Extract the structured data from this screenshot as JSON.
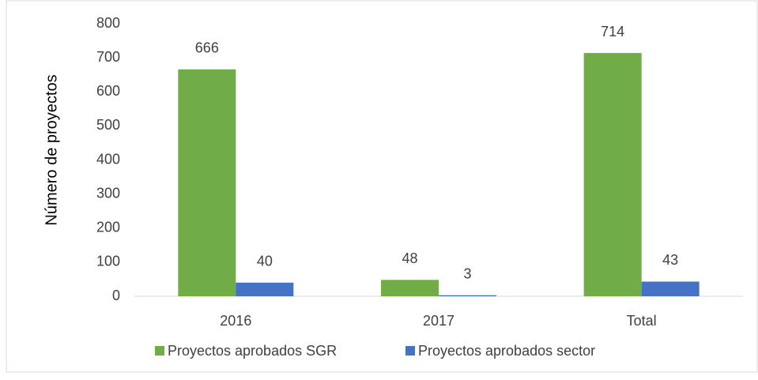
{
  "chart_data": {
    "type": "bar",
    "y_axis_label": "Número de proyectos",
    "categories": [
      "2016",
      "2017",
      "Total"
    ],
    "series": [
      {
        "name": "Proyectos aprobados SGR",
        "color": "#70ad47",
        "values": [
          666,
          48,
          714
        ]
      },
      {
        "name": "Proyectos aprobados sector",
        "color": "#4472c4",
        "values": [
          40,
          3,
          43
        ]
      }
    ],
    "ylim": [
      0,
      800
    ],
    "yticks": [
      0,
      100,
      200,
      300,
      400,
      500,
      600,
      700,
      800
    ],
    "grid": false,
    "legend": "bottom"
  }
}
